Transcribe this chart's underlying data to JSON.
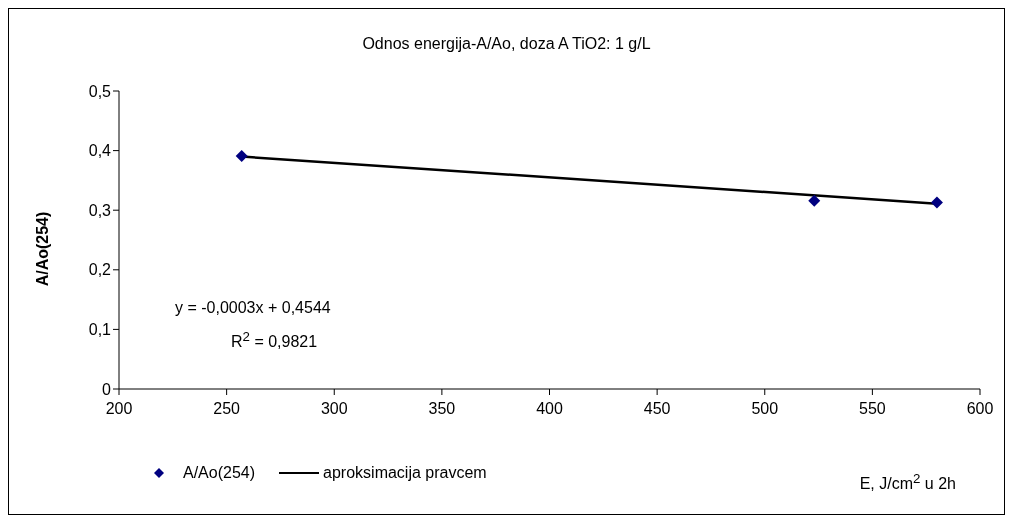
{
  "chart_data": {
    "type": "scatter",
    "title": "Odnos energija-A/Ao, doza A TiO2: 1 g/L",
    "xlabel": "E, J/cm$^{2}$ u 2h",
    "ylabel": "A/Ao(254)",
    "series": [
      {
        "name": "A/Ao(254)",
        "type": "scatter",
        "color": "#000080",
        "marker": "diamond",
        "x": [
          257,
          523,
          580
        ],
        "values": [
          0.391,
          0.316,
          0.313
        ]
      },
      {
        "name": "aproksimacija pravcem",
        "type": "line",
        "color": "#000000",
        "marker": "none",
        "line_style": "solid",
        "x": [
          257,
          580
        ],
        "values": [
          0.39,
          0.311
        ]
      }
    ],
    "annotations": [
      "y = -0,0003x + 0,4544",
      "R$^{2}$ = 0,9821"
    ],
    "xlim": [
      200,
      600
    ],
    "xticks": [
      200,
      250,
      300,
      350,
      400,
      450,
      500,
      550,
      600
    ],
    "ylim": [
      0,
      0.5
    ],
    "yticks": [
      0,
      {
        "value": 0.1,
        "label": "0,1"
      },
      {
        "value": 0.2,
        "label": "0,2"
      },
      {
        "value": 0.3,
        "label": "0,3"
      },
      {
        "value": 0.4,
        "label": "0,4"
      },
      {
        "value": 0.5,
        "label": "0,5"
      }
    ],
    "grid": false,
    "legend": "bottom"
  }
}
